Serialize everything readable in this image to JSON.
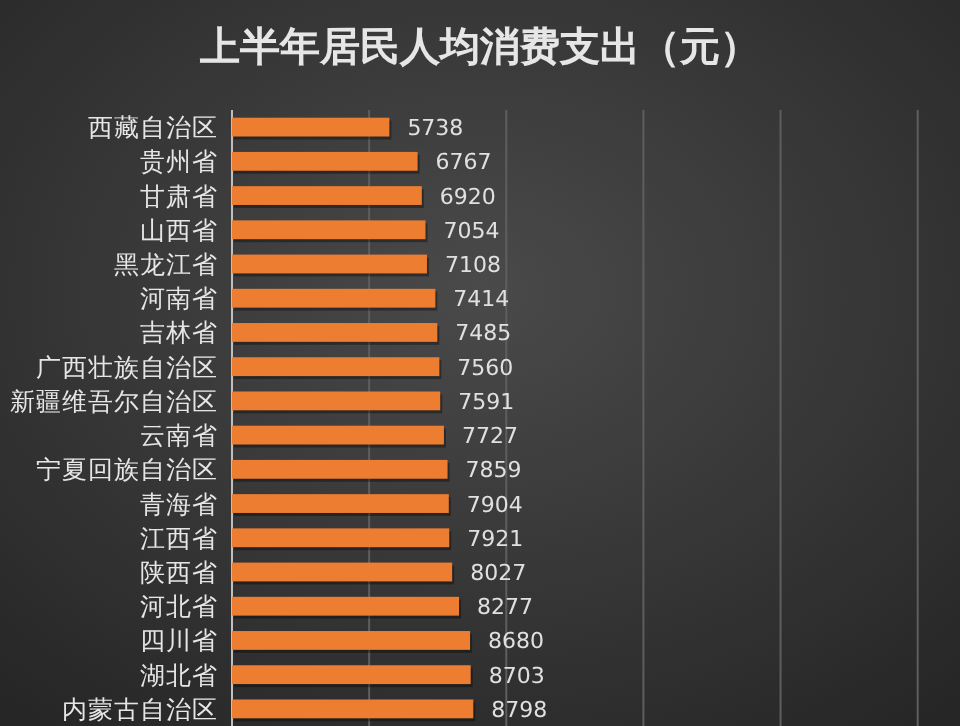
{
  "chart_data": {
    "type": "bar",
    "orientation": "horizontal",
    "title": "上半年居民人均消费支出（元）",
    "categories": [
      "西藏自治区",
      "贵州省",
      "甘肃省",
      "山西省",
      "黑龙江省",
      "河南省",
      "吉林省",
      "广西壮族自治区",
      "新疆维吾尔自治区",
      "云南省",
      "宁夏回族自治区",
      "青海省",
      "江西省",
      "陕西省",
      "河北省",
      "四川省",
      "湖北省",
      "内蒙古自治区"
    ],
    "values": [
      5738,
      6767,
      6920,
      7054,
      7108,
      7414,
      7485,
      7560,
      7591,
      7727,
      7859,
      7904,
      7921,
      8027,
      8277,
      8680,
      8703,
      8798
    ],
    "color": "#ed7d31",
    "data_labels": true,
    "xlim": [
      0,
      25000
    ],
    "xticks": [
      {
        "value": 0,
        "label": null
      },
      {
        "value": 5000,
        "label": null
      },
      {
        "value": 10000,
        "label": null
      },
      {
        "value": 15000,
        "label": null
      },
      {
        "value": 20000,
        "label": null
      },
      {
        "value": 25000,
        "label": null
      }
    ],
    "grid": "x",
    "tick_labels": "y"
  }
}
